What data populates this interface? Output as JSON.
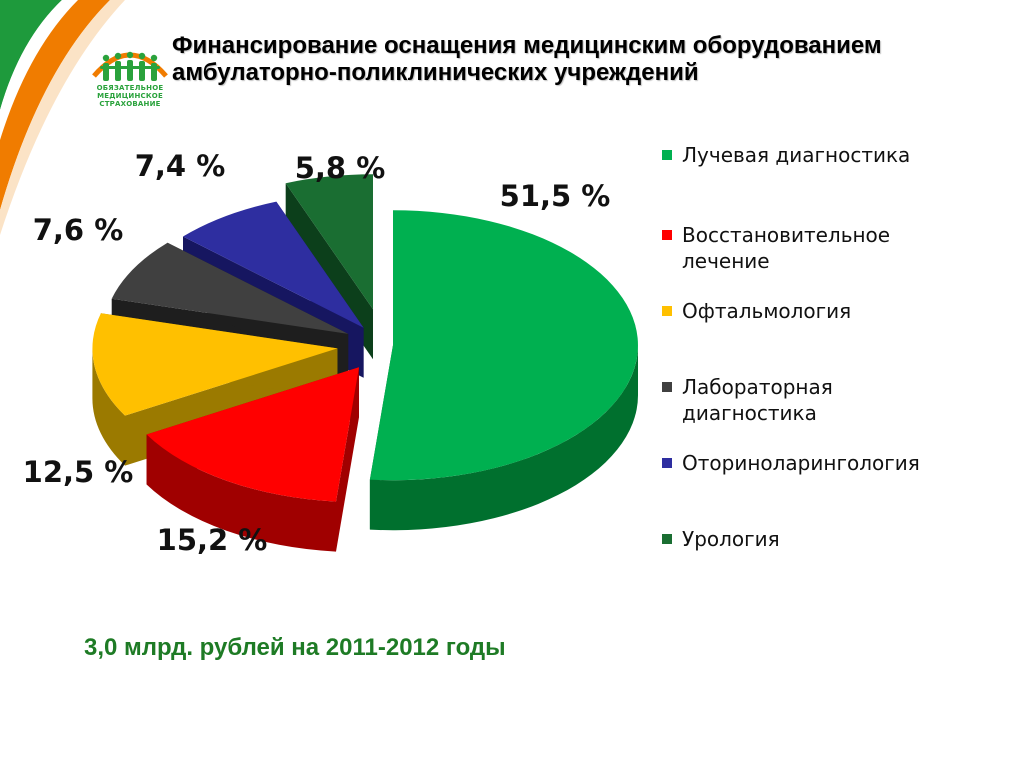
{
  "title": {
    "line1": "Финансирование оснащения медицинским оборудованием",
    "line2": "амбулаторно-поликлинических  учреждений"
  },
  "logo": {
    "icon": "people-group-logo-icon",
    "lines": [
      "ОБЯЗАТЕЛЬНОЕ",
      "МЕДИЦИНСКОЕ",
      "СТРАХОВАНИЕ"
    ]
  },
  "chart_data": {
    "type": "pie",
    "style": "3d-exploded",
    "slices": [
      {
        "name": "Лучевая диагностика",
        "value": 51.5,
        "label": "51,5 %",
        "color": "#00b050",
        "side_color": "#00702e"
      },
      {
        "name": "Восстановительное лечение",
        "value": 15.2,
        "label": "15,2 %",
        "color": "#ff0000",
        "side_color": "#a00000"
      },
      {
        "name": "Офтальмология",
        "value": 12.5,
        "label": "12,5 %",
        "color": "#ffc000",
        "side_color": "#9b7a00"
      },
      {
        "name": "Лабораторная диагностика",
        "value": 7.6,
        "label": "7,6 %",
        "color": "#404040",
        "side_color": "#1e1e1e"
      },
      {
        "name": "Оториноларингология",
        "value": 7.4,
        "label": "7,4 %",
        "color": "#2e2ea0",
        "side_color": "#161660"
      },
      {
        "name": "Урология",
        "value": 5.8,
        "label": "5,8 %",
        "color": "#1a6e32",
        "side_color": "#0c3f1b"
      }
    ],
    "legend_position": "right"
  },
  "legend": {
    "items": [
      {
        "lines": [
          "Лучевая диагностика"
        ],
        "color": "#00b050"
      },
      {
        "lines": [
          "Восстановительное",
          "лечение"
        ],
        "color": "#ff0000"
      },
      {
        "lines": [
          "Офтальмология"
        ],
        "color": "#ffc000"
      },
      {
        "lines": [
          "Лабораторная",
          "диагностика"
        ],
        "color": "#404040"
      },
      {
        "lines": [
          "Оториноларингология"
        ],
        "color": "#2e2ea0"
      },
      {
        "lines": [
          "Урология"
        ],
        "color": "#1a6e32"
      }
    ]
  },
  "footnote": "3,0 млрд. рублей на 2011-2012 годы",
  "colors": {
    "deco_green": "#1e9a3c",
    "deco_orange": "#f07c00",
    "footnote": "#1e7b25"
  }
}
